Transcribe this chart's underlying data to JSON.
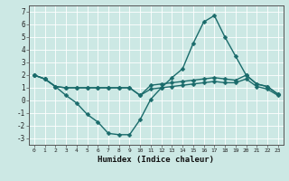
{
  "xlabel": "Humidex (Indice chaleur)",
  "bg_color": "#cce8e4",
  "grid_color": "#ffffff",
  "grid_color2": "#e8f5f3",
  "line_color": "#1a6b6b",
  "xlim": [
    -0.5,
    23.5
  ],
  "ylim": [
    -3.5,
    7.5
  ],
  "yticks": [
    -3,
    -2,
    -1,
    0,
    1,
    2,
    3,
    4,
    5,
    6,
    7
  ],
  "xticks": [
    0,
    1,
    2,
    3,
    4,
    5,
    6,
    7,
    8,
    9,
    10,
    11,
    12,
    13,
    14,
    15,
    16,
    17,
    18,
    19,
    20,
    21,
    22,
    23
  ],
  "line1_x": [
    0,
    1,
    2,
    3,
    4,
    5,
    6,
    7,
    8,
    9,
    10,
    11,
    12,
    13,
    14,
    15,
    16,
    17,
    18,
    19,
    20,
    21,
    22,
    23
  ],
  "line1_y": [
    2.0,
    1.7,
    1.1,
    0.4,
    -0.2,
    -1.1,
    -1.7,
    -2.6,
    -2.7,
    -2.7,
    -1.5,
    0.1,
    1.0,
    1.8,
    2.5,
    4.5,
    6.2,
    6.7,
    5.0,
    3.5,
    2.0,
    1.3,
    1.1,
    0.5
  ],
  "line2_x": [
    0,
    1,
    2,
    3,
    4,
    5,
    6,
    7,
    8,
    9,
    10,
    11,
    12,
    13,
    14,
    15,
    16,
    17,
    18,
    19,
    20,
    21,
    22,
    23
  ],
  "line2_y": [
    2.0,
    1.7,
    1.1,
    1.0,
    1.0,
    1.0,
    1.0,
    1.0,
    1.0,
    1.0,
    0.4,
    1.2,
    1.3,
    1.4,
    1.5,
    1.6,
    1.7,
    1.8,
    1.7,
    1.6,
    2.0,
    1.3,
    1.1,
    0.5
  ],
  "line3_x": [
    0,
    1,
    2,
    3,
    4,
    5,
    6,
    7,
    8,
    9,
    10,
    11,
    12,
    13,
    14,
    15,
    16,
    17,
    18,
    19,
    20,
    21,
    22,
    23
  ],
  "line3_y": [
    2.0,
    1.7,
    1.1,
    1.0,
    1.0,
    1.0,
    1.0,
    1.0,
    1.0,
    1.0,
    0.4,
    0.9,
    1.0,
    1.1,
    1.2,
    1.3,
    1.4,
    1.5,
    1.4,
    1.4,
    1.7,
    1.1,
    0.9,
    0.4
  ],
  "marker": "D",
  "marker_size": 2.5,
  "linewidth": 1.0
}
